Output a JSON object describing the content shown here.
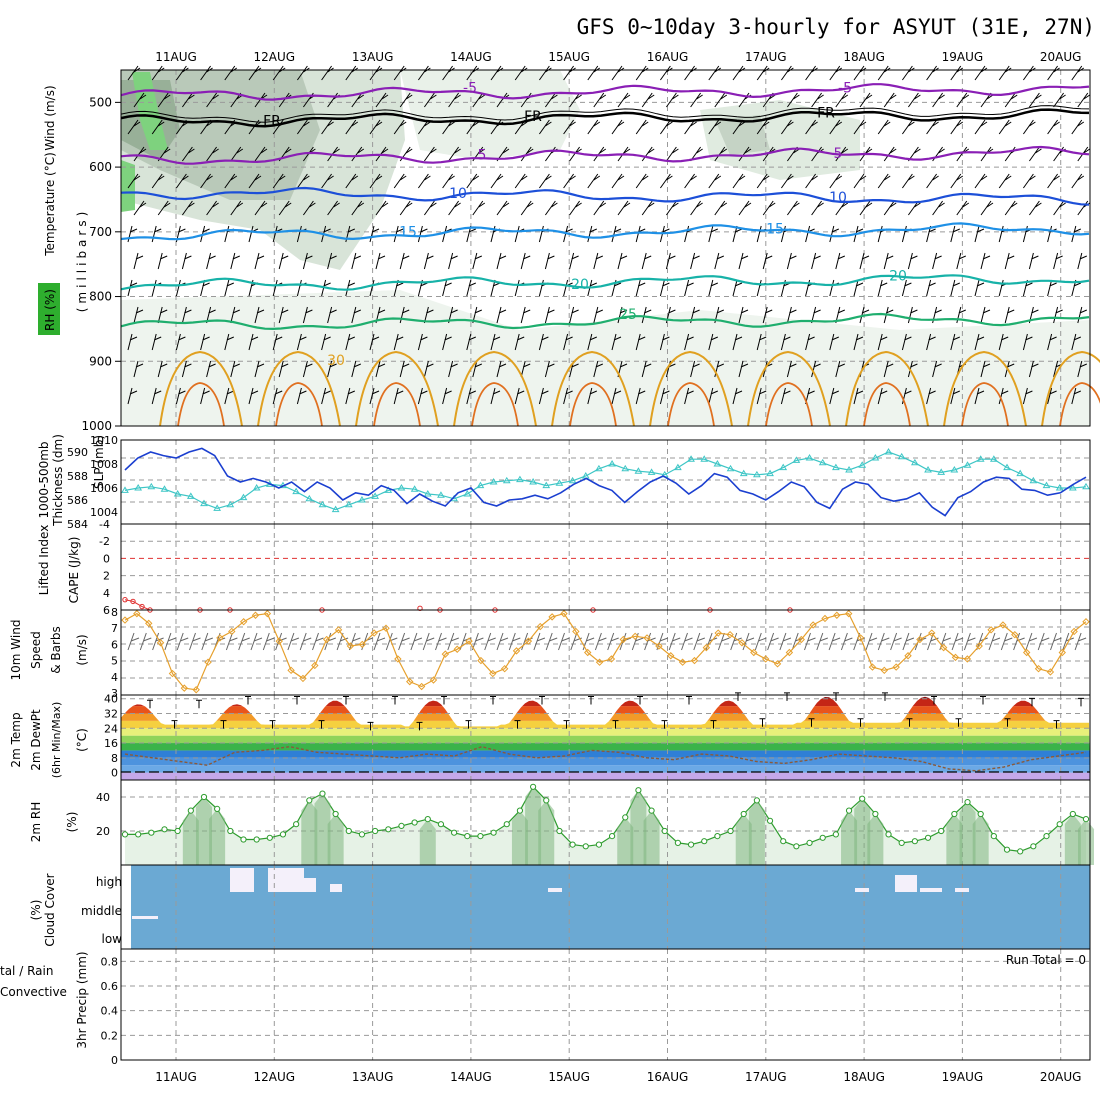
{
  "title": "GFS 0~10day 3-hourly for ASYUT (31E, 27N)",
  "dates": [
    "11AUG",
    "12AUG",
    "13AUG",
    "14AUG",
    "15AUG",
    "16AUG",
    "17AUG",
    "18AUG",
    "19AUG",
    "20AUG"
  ],
  "run_total": "Run Total = 0",
  "panels": {
    "upper": {
      "label_wind": "Wind (m/s)",
      "label_temp": "Temperature (°C)",
      "label_rh": "RH (%)",
      "label_mb": "(millibars)",
      "yticks": [
        "500",
        "600",
        "700",
        "800",
        "900",
        "1000"
      ],
      "fr_label": "FR"
    },
    "slp": {
      "label_slp": "SLP (mb)",
      "label_thk1": "Thickness (dm)",
      "label_thk2": "1000-500mb",
      "yticks_left": [
        "590",
        "588",
        "586",
        "584"
      ],
      "yticks_right": [
        "1010",
        "1008",
        "1006",
        "1004"
      ]
    },
    "cape": {
      "label_li": "Lifted Index",
      "label_cape": "CAPE (J/kg)",
      "yticks": [
        "-4",
        "-2",
        "0",
        "2",
        "4",
        "6"
      ]
    },
    "wind": {
      "label1": "10m Wind",
      "label2": "Speed",
      "label3": "& Barbs",
      "unit": "(m/s)",
      "yticks": [
        "8",
        "7",
        "6",
        "5",
        "4",
        "3"
      ]
    },
    "temp": {
      "label1": "2m Temp",
      "label2": "2m DewPt",
      "label3": "(6hr Min/Max)",
      "unit": "(°C)",
      "yticks": [
        "40",
        "32",
        "24",
        "16",
        "8",
        "0"
      ]
    },
    "rh": {
      "label": "2m RH",
      "unit": "(%)",
      "yticks": [
        "40",
        "20"
      ]
    },
    "cloud": {
      "label1": "Cloud Cover",
      "unit": "(%)",
      "levels": [
        "high",
        "middle",
        "low"
      ]
    },
    "precip": {
      "label1": "tal / Rain",
      "label2": "Convective",
      "label3": "3hr Precip (mm)",
      "yticks": [
        "0.8",
        "0.6",
        "0.4",
        "0.2",
        "0"
      ]
    }
  },
  "colors": {
    "temp_purple": "#8a1fb5",
    "temp_blue": "#1c4fd8",
    "temp_lightblue": "#1e90e6",
    "temp_teal": "#17b2a8",
    "temp_green": "#1fae6e",
    "temp_orange": "#e0a020",
    "slp": "#1b3fd0",
    "thickness": "#3ec6c6",
    "wind": "#e6a02d",
    "rh": "#2e9c2e",
    "cloud": "#6ba9d3",
    "li": "#e03030"
  },
  "chart_data": {
    "type": "meteogram",
    "x_range_days": [
      "11AUG",
      "20AUG"
    ],
    "upper_air": {
      "yrange_mb": [
        450,
        1000
      ],
      "temperature_isotherms_c": [
        -5,
        0,
        5,
        10,
        15,
        20,
        25,
        30
      ],
      "isotherm_labels": [
        "-5",
        "FR",
        "5",
        "10",
        "15",
        "20",
        "25",
        "30"
      ],
      "rh_contours": [
        "10",
        "50"
      ]
    },
    "slp_mb": {
      "ylim": [
        1003,
        1010
      ],
      "values": [
        1007.5,
        1008.5,
        1009,
        1008.7,
        1008.5,
        1009,
        1009.3,
        1008.7,
        1007,
        1006.5,
        1006.8,
        1006.5,
        1006,
        1006.5,
        1005.7,
        1006.5,
        1006,
        1005,
        1005.6,
        1005.4,
        1006.2,
        1005.8,
        1004.7,
        1005.5,
        1004.9,
        1004.5,
        1005.6,
        1006,
        1004.8,
        1004.5,
        1005,
        1005.1,
        1005.4,
        1005.1,
        1005.6,
        1006.3,
        1006.8,
        1006.2,
        1005.8,
        1004.8,
        1005.7,
        1006.5,
        1007,
        1006.4,
        1005.5,
        1006.2,
        1007.2,
        1006.9,
        1005.8,
        1005.5,
        1005,
        1005.7,
        1006.5,
        1006.1,
        1004.8,
        1004.3,
        1005.9,
        1006.5,
        1006.3,
        1005.2,
        1004.9,
        1005.1,
        1005.6,
        1004.4,
        1003.7,
        1005.2,
        1005.7,
        1006.5,
        1006.9,
        1006.8,
        1005.9,
        1005.8,
        1005.4,
        1005.6,
        1006.3,
        1006.9
      ]
    },
    "thickness_dm": {
      "ylim": [
        584,
        591
      ],
      "values": [
        586.8,
        587,
        587.1,
        586.9,
        586.5,
        586.3,
        585.7,
        585.3,
        585.6,
        586.2,
        587,
        587.3,
        587.2,
        586.7,
        586.1,
        585.6,
        585.2,
        585.6,
        586,
        586.3,
        586.8,
        587,
        586.9,
        586.5,
        586.4,
        586.1,
        586.5,
        587.2,
        587.5,
        587.6,
        587.7,
        587.5,
        587.2,
        587.4,
        587.6,
        588,
        588.6,
        589,
        588.6,
        588.4,
        588.3,
        588.1,
        588.7,
        589.4,
        589.4,
        589,
        588.6,
        588.2,
        588.1,
        588.2,
        588.7,
        589.3,
        589.5,
        589.1,
        588.7,
        588.5,
        588.9,
        589.5,
        590,
        589.6,
        589.1,
        588.5,
        588.3,
        588.5,
        588.9,
        589.4,
        589.4,
        588.7,
        588.2,
        587.6,
        587.2,
        587,
        587,
        587.1
      ]
    },
    "lifted_index": {
      "ylim": [
        -4,
        6
      ],
      "values": [
        4.8,
        5,
        5.6,
        6,
        6,
        6,
        5.8,
        6,
        5.9,
        6,
        6,
        6,
        5.8,
        6,
        6,
        5.9,
        5.8,
        6,
        6,
        5.7,
        6
      ]
    },
    "wind10m_ms": {
      "ylim": [
        3,
        8
      ],
      "values": [
        7.5,
        7.9,
        7.3,
        6.1,
        4.2,
        3.3,
        3.2,
        4.9,
        6.4,
        6.8,
        7.4,
        7.8,
        7.9,
        6.2,
        4.4,
        3.9,
        4.7,
        6.3,
        6.9,
        5.9,
        6,
        6.7,
        7,
        5.1,
        3.7,
        3.4,
        3.8,
        5.4,
        5.7,
        6.2,
        5,
        4.2,
        4.5,
        5.6,
        6.2,
        7.1,
        7.7,
        7.9,
        6.8,
        5.5,
        4.9,
        5.1,
        6.3,
        6.5,
        6.4,
        5.9,
        5.3,
        4.9,
        5,
        5.8,
        6.7,
        6.6,
        6.1,
        5.5,
        5.1,
        4.8,
        5.5,
        6.3,
        7.2,
        7.6,
        7.8,
        7.9,
        6.4,
        4.6,
        4.4,
        4.6,
        5.3,
        6.3,
        6.7,
        5.8,
        5.2,
        5.1,
        5.9,
        6.9,
        7.2,
        6.6,
        5.5,
        4.5,
        4.3,
        5.5,
        6.8,
        7.4
      ]
    },
    "temp2m_c": {
      "ylim": [
        -4,
        42
      ],
      "daily_max": [
        37,
        39,
        39,
        39,
        39,
        39,
        41,
        41,
        39,
        38
      ],
      "daily_min": [
        26,
        26,
        25,
        26,
        26,
        26,
        27,
        27,
        27,
        26
      ]
    },
    "dewpt2m_c": {
      "values": [
        10,
        8,
        6,
        4,
        11,
        12,
        14,
        11,
        10,
        9,
        8,
        10,
        9,
        14,
        10,
        8,
        9,
        12,
        11,
        8,
        7,
        10,
        9,
        6,
        5,
        7,
        10,
        9,
        8,
        6,
        2,
        1,
        3,
        7,
        9,
        11
      ]
    },
    "rh2m_pct": {
      "ylim": [
        0,
        50
      ],
      "values": [
        18,
        18,
        19,
        21,
        20,
        32,
        40,
        33,
        20,
        15,
        15,
        16,
        18,
        24,
        38,
        42,
        30,
        20,
        18,
        20,
        21,
        23,
        25,
        27,
        24,
        19,
        17,
        17,
        19,
        24,
        32,
        46,
        38,
        20,
        12,
        11,
        12,
        17,
        28,
        44,
        32,
        20,
        13,
        12,
        14,
        17,
        20,
        30,
        38,
        26,
        14,
        11,
        13,
        16,
        18,
        32,
        39,
        30,
        18,
        13,
        14,
        16,
        20,
        30,
        37,
        30,
        17,
        9,
        8,
        11,
        17,
        24,
        30,
        27
      ]
    },
    "cloud_cover": {
      "levels": [
        "high",
        "middle",
        "low"
      ],
      "high_bursts": [
        "11AUG",
        "12AUG",
        "18AUG"
      ]
    },
    "precip3h_mm": {
      "ylim": [
        0,
        0.9
      ],
      "values": []
    }
  }
}
